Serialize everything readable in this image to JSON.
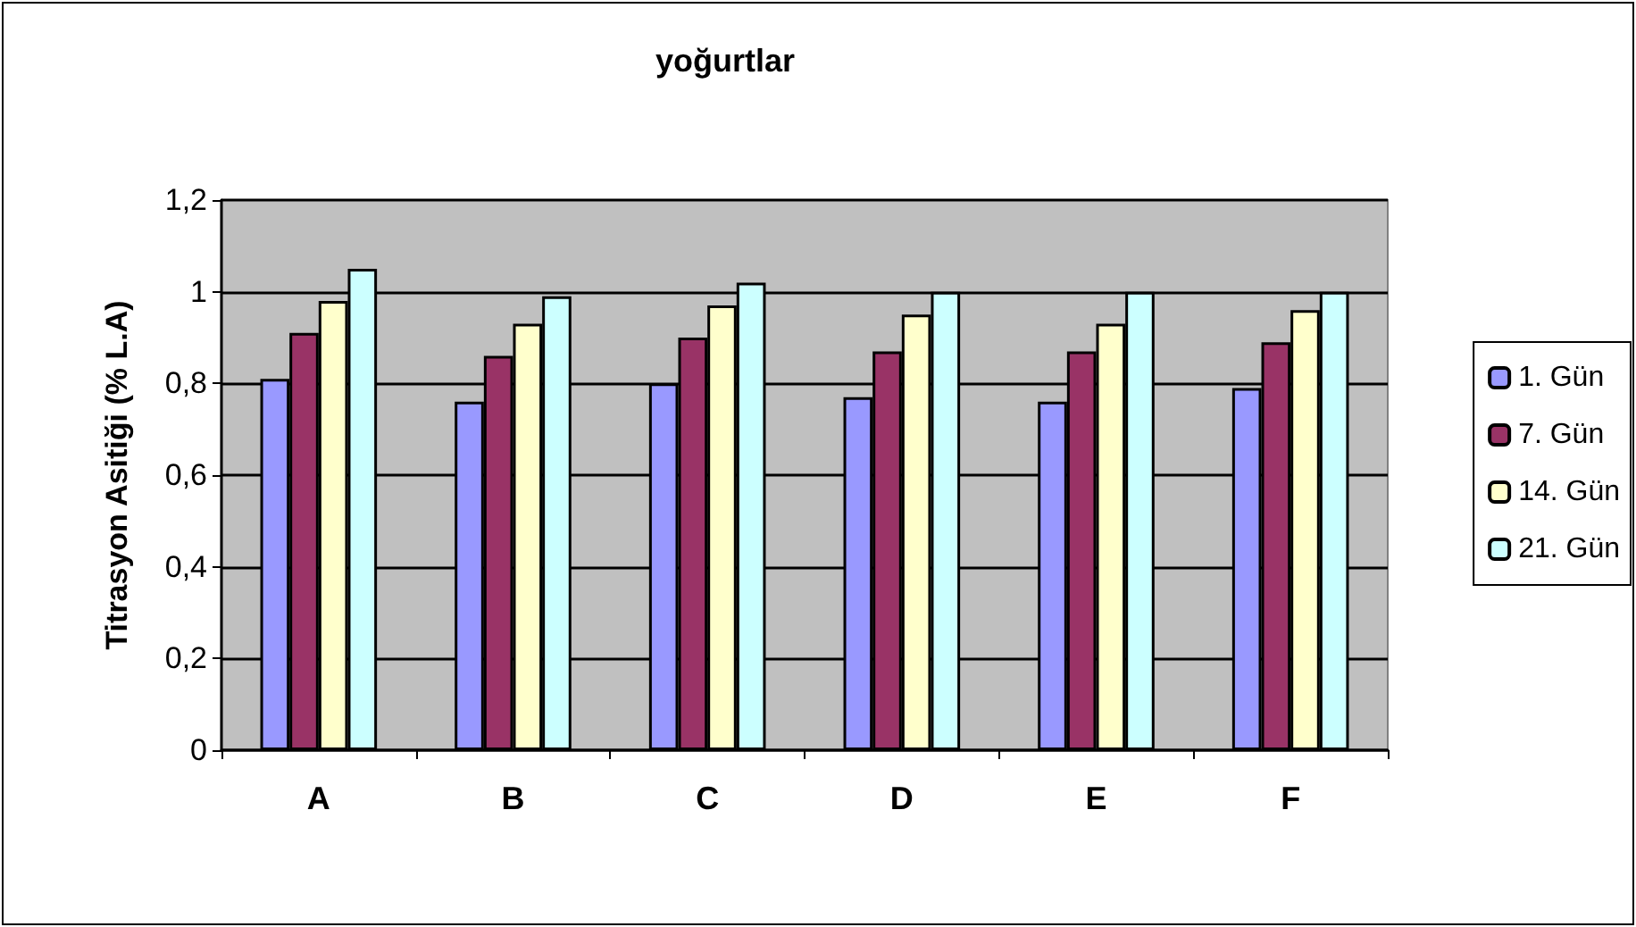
{
  "chart_data": {
    "type": "bar",
    "title": "yoğurtlar",
    "ylabel": "Titrasyon Asitiği (% L.A)",
    "categories": [
      "A",
      "B",
      "C",
      "D",
      "E",
      "F"
    ],
    "series": [
      {
        "name": "1. Gün",
        "color": "#9999ff",
        "values": [
          0.81,
          0.76,
          0.8,
          0.77,
          0.76,
          0.79
        ]
      },
      {
        "name": "7. Gün",
        "color": "#993366",
        "values": [
          0.91,
          0.86,
          0.9,
          0.87,
          0.87,
          0.89
        ]
      },
      {
        "name": "14. Gün",
        "color": "#ffffcc",
        "values": [
          0.98,
          0.93,
          0.97,
          0.95,
          0.93,
          0.96
        ]
      },
      {
        "name": "21. Gün",
        "color": "#ccffff",
        "values": [
          1.05,
          0.99,
          1.02,
          1.0,
          1.0,
          1.0
        ]
      }
    ],
    "ylim": [
      0,
      1.2
    ],
    "yticks": [
      0,
      {
        "value": 0.2,
        "label": "0,2"
      },
      {
        "value": 0.4,
        "label": "0,4"
      },
      {
        "value": 0.6,
        "label": "0,6"
      },
      {
        "value": 0.8,
        "label": "0,8"
      },
      1,
      {
        "value": 1.2,
        "label": "1,2"
      }
    ],
    "grid": "y",
    "legend": "right"
  }
}
